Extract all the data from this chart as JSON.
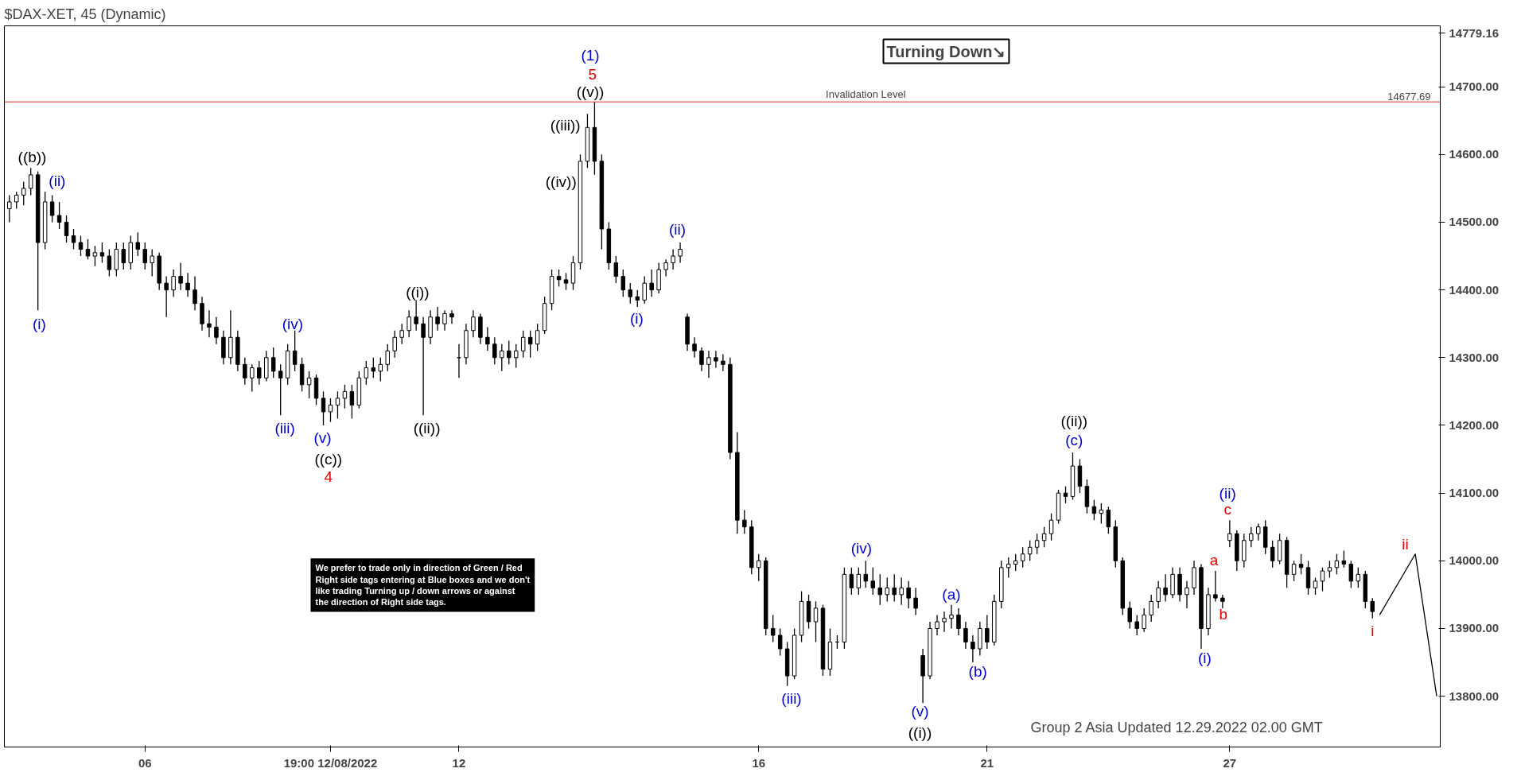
{
  "chart_data": {
    "type": "candlestick",
    "title": "$DAX-XET, 45 (Dynamic)",
    "color": "#000000",
    "categories": [
      null,
      null,
      null,
      null,
      null,
      null,
      null,
      null,
      null,
      null,
      null,
      null,
      null,
      null,
      null,
      null,
      null,
      null,
      null,
      "06",
      null,
      null,
      null,
      null,
      null,
      null,
      null,
      null,
      null,
      null,
      null,
      null,
      null,
      null,
      null,
      null,
      null,
      null,
      null,
      null,
      null,
      null,
      null,
      null,
      null,
      "19:00 12/08/2022",
      null,
      null,
      null,
      null,
      null,
      null,
      null,
      null,
      null,
      null,
      null,
      null,
      null,
      null,
      null,
      null,
      null,
      "12",
      null,
      null,
      null,
      null,
      null,
      null,
      null,
      null,
      null,
      null,
      null,
      null,
      null,
      null,
      null,
      null,
      null,
      null,
      null,
      null,
      null,
      null,
      null,
      null,
      null,
      null,
      null,
      null,
      null,
      null,
      null,
      null,
      null,
      null,
      null,
      null,
      null,
      null,
      null,
      null,
      null,
      "16",
      null,
      null,
      null,
      null,
      null,
      null,
      null,
      null,
      null,
      null,
      null,
      null,
      null,
      null,
      null,
      null,
      null,
      null,
      null,
      null,
      null,
      null,
      null,
      null,
      null,
      null,
      null,
      null,
      null,
      null,
      null,
      "21",
      null,
      null,
      null,
      null,
      null,
      null,
      null,
      null,
      null,
      null,
      null,
      null,
      null,
      null,
      null,
      null,
      null,
      null,
      null,
      null,
      null,
      null,
      null,
      null,
      null,
      null,
      null,
      null,
      null,
      null,
      null,
      null,
      null,
      "27",
      null,
      null,
      null,
      null,
      null,
      null,
      null,
      null,
      null,
      null,
      null,
      null,
      null,
      null,
      null,
      null,
      null,
      null,
      null,
      null,
      null,
      null,
      null,
      null,
      null,
      null,
      null,
      null,
      null
    ],
    "ohlc": [
      [
        14520,
        14540,
        14500,
        14530
      ],
      [
        14530,
        14545,
        14520,
        14540
      ],
      [
        14540,
        14560,
        14525,
        14550
      ],
      [
        14550,
        14580,
        14540,
        14570
      ],
      [
        14570,
        14575,
        14370,
        14470
      ],
      [
        14470,
        14545,
        14460,
        14530
      ],
      [
        14530,
        14540,
        14500,
        14510
      ],
      [
        14510,
        14530,
        14490,
        14500
      ],
      [
        14500,
        14510,
        14470,
        14480
      ],
      [
        14480,
        14490,
        14460,
        14470
      ],
      [
        14470,
        14480,
        14450,
        14460
      ],
      [
        14460,
        14475,
        14445,
        14450
      ],
      [
        14450,
        14465,
        14435,
        14455
      ],
      [
        14455,
        14470,
        14440,
        14450
      ],
      [
        14450,
        14460,
        14420,
        14430
      ],
      [
        14430,
        14470,
        14420,
        14460
      ],
      [
        14460,
        14470,
        14430,
        14440
      ],
      [
        14440,
        14480,
        14430,
        14470
      ],
      [
        14470,
        14485,
        14450,
        14460
      ],
      [
        14460,
        14470,
        14430,
        14440
      ],
      [
        14440,
        14460,
        14420,
        14450
      ],
      [
        14450,
        14455,
        14400,
        14410
      ],
      [
        14410,
        14420,
        14360,
        14400
      ],
      [
        14400,
        14430,
        14390,
        14420
      ],
      [
        14420,
        14440,
        14400,
        14410
      ],
      [
        14410,
        14425,
        14390,
        14400
      ],
      [
        14400,
        14420,
        14370,
        14380
      ],
      [
        14380,
        14390,
        14340,
        14350
      ],
      [
        14350,
        14370,
        14330,
        14345
      ],
      [
        14345,
        14360,
        14320,
        14330
      ],
      [
        14330,
        14340,
        14290,
        14300
      ],
      [
        14300,
        14370,
        14290,
        14330
      ],
      [
        14330,
        14340,
        14280,
        14290
      ],
      [
        14290,
        14300,
        14260,
        14270
      ],
      [
        14270,
        14290,
        14250,
        14285
      ],
      [
        14285,
        14295,
        14260,
        14270
      ],
      [
        14270,
        14310,
        14265,
        14300
      ],
      [
        14300,
        14315,
        14270,
        14280
      ],
      [
        14280,
        14290,
        14215,
        14270
      ],
      [
        14270,
        14320,
        14260,
        14310
      ],
      [
        14310,
        14340,
        14280,
        14290
      ],
      [
        14290,
        14300,
        14250,
        14260
      ],
      [
        14260,
        14280,
        14240,
        14270
      ],
      [
        14270,
        14275,
        14230,
        14240
      ],
      [
        14240,
        14250,
        14200,
        14220
      ],
      [
        14220,
        14240,
        14205,
        14230
      ],
      [
        14230,
        14250,
        14210,
        14240
      ],
      [
        14240,
        14260,
        14225,
        14250
      ],
      [
        14250,
        14260,
        14210,
        14230
      ],
      [
        14230,
        14280,
        14225,
        14270
      ],
      [
        14270,
        14295,
        14260,
        14285
      ],
      [
        14285,
        14300,
        14270,
        14280
      ],
      [
        14280,
        14300,
        14265,
        14290
      ],
      [
        14290,
        14320,
        14280,
        14310
      ],
      [
        14310,
        14340,
        14300,
        14330
      ],
      [
        14330,
        14350,
        14320,
        14340
      ],
      [
        14340,
        14370,
        14330,
        14360
      ],
      [
        14360,
        14385,
        14340,
        14350
      ],
      [
        14350,
        14360,
        14215,
        14330
      ],
      [
        14330,
        14370,
        14320,
        14360
      ],
      [
        14360,
        14375,
        14340,
        14350
      ],
      [
        14350,
        14370,
        14340,
        14365
      ],
      [
        14365,
        14370,
        14350,
        14360
      ],
      [
        14300,
        14320,
        14270,
        14300
      ],
      [
        14300,
        14350,
        14290,
        14340
      ],
      [
        14340,
        14370,
        14330,
        14360
      ],
      [
        14360,
        14365,
        14320,
        14330
      ],
      [
        14330,
        14345,
        14310,
        14320
      ],
      [
        14320,
        14330,
        14290,
        14300
      ],
      [
        14300,
        14320,
        14280,
        14310
      ],
      [
        14310,
        14325,
        14290,
        14300
      ],
      [
        14300,
        14320,
        14285,
        14310
      ],
      [
        14310,
        14340,
        14300,
        14330
      ],
      [
        14330,
        14340,
        14300,
        14320
      ],
      [
        14320,
        14350,
        14310,
        14340
      ],
      [
        14340,
        14390,
        14335,
        14380
      ],
      [
        14380,
        14430,
        14370,
        14420
      ],
      [
        14420,
        14430,
        14405,
        14415
      ],
      [
        14415,
        14425,
        14400,
        14410
      ],
      [
        14410,
        14450,
        14400,
        14440
      ],
      [
        14440,
        14600,
        14430,
        14590
      ],
      [
        14590,
        14660,
        14580,
        14640
      ],
      [
        14640,
        14677.69,
        14570,
        14590
      ],
      [
        14590,
        14600,
        14460,
        14490
      ],
      [
        14490,
        14500,
        14430,
        14440
      ],
      [
        14440,
        14450,
        14410,
        14420
      ],
      [
        14420,
        14430,
        14390,
        14400
      ],
      [
        14400,
        14410,
        14380,
        14390
      ],
      [
        14390,
        14400,
        14375,
        14385
      ],
      [
        14385,
        14420,
        14380,
        14410
      ],
      [
        14410,
        14430,
        14390,
        14400
      ],
      [
        14400,
        14440,
        14395,
        14430
      ],
      [
        14430,
        14445,
        14420,
        14440
      ],
      [
        14440,
        14460,
        14430,
        14450
      ],
      [
        14450,
        14470,
        14440,
        14460
      ],
      [
        14360,
        14365,
        14310,
        14320
      ],
      [
        14320,
        14330,
        14300,
        14310
      ],
      [
        14310,
        14315,
        14280,
        14290
      ],
      [
        14290,
        14310,
        14270,
        14300
      ],
      [
        14300,
        14310,
        14285,
        14295
      ],
      [
        14295,
        14305,
        14280,
        14290
      ],
      [
        14290,
        14300,
        14150,
        14160
      ],
      [
        14160,
        14190,
        14040,
        14060
      ],
      [
        14060,
        14075,
        14040,
        14050
      ],
      [
        14050,
        14060,
        13980,
        13990
      ],
      [
        13990,
        14010,
        13970,
        14000
      ],
      [
        14000,
        14005,
        13890,
        13900
      ],
      [
        13900,
        13920,
        13880,
        13890
      ],
      [
        13890,
        13900,
        13860,
        13870
      ],
      [
        13870,
        13880,
        13815,
        13830
      ],
      [
        13830,
        13900,
        13825,
        13890
      ],
      [
        13890,
        13955,
        13880,
        13940
      ],
      [
        13940,
        13950,
        13900,
        13910
      ],
      [
        13910,
        13940,
        13880,
        13930
      ],
      [
        13930,
        13935,
        13830,
        13840
      ],
      [
        13840,
        13900,
        13830,
        13880
      ],
      [
        13880,
        13890,
        13870,
        13880
      ],
      [
        13880,
        13990,
        13870,
        13980
      ],
      [
        13980,
        13990,
        13950,
        13960
      ],
      [
        13960,
        13990,
        13950,
        13980
      ],
      [
        13980,
        14000,
        13960,
        13970
      ],
      [
        13970,
        13990,
        13950,
        13960
      ],
      [
        13960,
        13980,
        13935,
        13950
      ],
      [
        13950,
        13975,
        13940,
        13960
      ],
      [
        13960,
        13980,
        13940,
        13950
      ],
      [
        13950,
        13975,
        13935,
        13960
      ],
      [
        13960,
        13970,
        13930,
        13945
      ],
      [
        13945,
        13960,
        13920,
        13930
      ],
      [
        13860,
        13870,
        13790,
        13830
      ],
      [
        13830,
        13910,
        13825,
        13900
      ],
      [
        13900,
        13920,
        13890,
        13910
      ],
      [
        13910,
        13925,
        13895,
        13915
      ],
      [
        13915,
        13935,
        13900,
        13920
      ],
      [
        13920,
        13930,
        13890,
        13900
      ],
      [
        13900,
        13910,
        13870,
        13880
      ],
      [
        13880,
        13890,
        13850,
        13870
      ],
      [
        13870,
        13910,
        13860,
        13900
      ],
      [
        13900,
        13920,
        13870,
        13880
      ],
      [
        13880,
        13950,
        13875,
        13940
      ],
      [
        13940,
        14000,
        13930,
        13990
      ],
      [
        13990,
        14005,
        13975,
        13995
      ],
      [
        13995,
        14010,
        13985,
        14000
      ],
      [
        14000,
        14020,
        13990,
        14010
      ],
      [
        14010,
        14030,
        14000,
        14020
      ],
      [
        14020,
        14040,
        14010,
        14030
      ],
      [
        14030,
        14050,
        14020,
        14040
      ],
      [
        14040,
        14070,
        14030,
        14060
      ],
      [
        14060,
        14105,
        14055,
        14100
      ],
      [
        14100,
        14110,
        14085,
        14095
      ],
      [
        14095,
        14160,
        14090,
        14140
      ],
      [
        14140,
        14150,
        14100,
        14110
      ],
      [
        14110,
        14120,
        14070,
        14080
      ],
      [
        14080,
        14090,
        14060,
        14070
      ],
      [
        14070,
        14085,
        14055,
        14075
      ],
      [
        14075,
        14080,
        14040,
        14050
      ],
      [
        14050,
        14060,
        13990,
        14000
      ],
      [
        14000,
        14005,
        13920,
        13930
      ],
      [
        13930,
        13940,
        13900,
        13910
      ],
      [
        13910,
        13920,
        13890,
        13900
      ],
      [
        13900,
        13930,
        13895,
        13920
      ],
      [
        13920,
        13950,
        13910,
        13940
      ],
      [
        13940,
        13970,
        13930,
        13960
      ],
      [
        13960,
        13980,
        13940,
        13950
      ],
      [
        13950,
        13990,
        13945,
        13980
      ],
      [
        13980,
        13990,
        13940,
        13950
      ],
      [
        13950,
        13970,
        13930,
        13960
      ],
      [
        13960,
        14000,
        13950,
        13990
      ],
      [
        13990,
        13995,
        13870,
        13900
      ],
      [
        13900,
        13960,
        13890,
        13950
      ],
      [
        13950,
        13985,
        13940,
        13945
      ],
      [
        13945,
        13950,
        13930,
        13940
      ],
      [
        14030,
        14060,
        14020,
        14040
      ],
      [
        14040,
        14045,
        13985,
        14000
      ],
      [
        14000,
        14040,
        13990,
        14030
      ],
      [
        14030,
        14050,
        14020,
        14040
      ],
      [
        14040,
        14055,
        14030,
        14050
      ],
      [
        14050,
        14060,
        14010,
        14020
      ],
      [
        14020,
        14030,
        13990,
        14000
      ],
      [
        14000,
        14040,
        13995,
        14030
      ],
      [
        14030,
        14035,
        13960,
        13980
      ],
      [
        13980,
        14000,
        13970,
        13995
      ],
      [
        13995,
        14010,
        13980,
        13990
      ],
      [
        13990,
        14000,
        13950,
        13960
      ],
      [
        13960,
        13975,
        13950,
        13970
      ],
      [
        13970,
        13990,
        13955,
        13985
      ],
      [
        13985,
        14000,
        13975,
        13990
      ],
      [
        13990,
        14010,
        13980,
        14000
      ],
      [
        14000,
        14015,
        13990,
        13995
      ],
      [
        13995,
        14000,
        13960,
        13970
      ],
      [
        13970,
        13990,
        13960,
        13980
      ],
      [
        13980,
        13985,
        13930,
        13940
      ],
      [
        13940,
        13945,
        13915,
        13925
      ],
      null,
      null,
      null,
      null,
      null,
      null,
      null,
      null,
      null
    ],
    "series": [
      {
        "type": "line",
        "color": "#000000",
        "values": [
          null,
          null,
          null,
          null,
          null,
          null,
          null,
          null,
          null,
          null,
          null,
          null,
          null,
          null,
          null,
          null,
          null,
          null,
          null,
          null,
          null,
          null,
          null,
          null,
          null,
          null,
          null,
          null,
          null,
          null,
          null,
          null,
          null,
          null,
          null,
          null,
          null,
          null,
          null,
          null,
          null,
          null,
          null,
          null,
          null,
          null,
          null,
          null,
          null,
          null,
          null,
          null,
          null,
          null,
          null,
          null,
          null,
          null,
          null,
          null,
          null,
          null,
          null,
          null,
          null,
          null,
          null,
          null,
          null,
          null,
          null,
          null,
          null,
          null,
          null,
          null,
          null,
          null,
          null,
          null,
          null,
          null,
          null,
          null,
          null,
          null,
          null,
          null,
          null,
          null,
          null,
          null,
          null,
          null,
          null,
          null,
          null,
          null,
          null,
          null,
          null,
          null,
          null,
          null,
          null,
          null,
          null,
          null,
          null,
          null,
          null,
          null,
          null,
          null,
          null,
          null,
          null,
          null,
          null,
          null,
          null,
          null,
          null,
          null,
          null,
          null,
          null,
          null,
          null,
          null,
          null,
          null,
          null,
          null,
          null,
          null,
          null,
          null,
          null,
          null,
          null,
          null,
          null,
          null,
          null,
          null,
          null,
          null,
          null,
          null,
          null,
          null,
          null,
          null,
          null,
          null,
          null,
          null,
          null,
          null,
          null,
          null,
          null,
          null,
          null,
          null,
          null,
          null,
          null,
          null,
          null,
          null,
          null,
          null,
          null,
          null,
          null,
          null,
          null,
          null,
          null,
          null,
          null,
          null,
          null,
          null,
          null,
          null,
          null,
          null,
          null,
          null,
          13920,
          null,
          null,
          null,
          null,
          14010,
          null,
          null,
          13800
        ]
      }
    ],
    "ylim": [
      13725,
      14790
    ],
    "yticks": [
      {
        "value": 13800,
        "label": "13800.00"
      },
      {
        "value": 13900,
        "label": "13900.00"
      },
      {
        "value": 14000,
        "label": "14000.00"
      },
      {
        "value": 14100,
        "label": "14100.00"
      },
      {
        "value": 14200,
        "label": "14200.00"
      },
      {
        "value": 14300,
        "label": "14300.00"
      },
      {
        "value": 14400,
        "label": "14400.00"
      },
      {
        "value": 14500,
        "label": "14500.00"
      },
      {
        "value": 14600,
        "label": "14600.00"
      },
      {
        "value": 14700,
        "label": "14700.00"
      },
      {
        "value": 14779.16,
        "label": "14779.16"
      }
    ],
    "ref_lines": [
      {
        "axis": "y",
        "value": 14677.69,
        "label": "Invalidation Level",
        "color": "#e03030"
      }
    ],
    "grid": false,
    "annotations": [
      "((b))",
      "(ii)",
      "(i)",
      "(iii)",
      "(iv)",
      "(v)",
      "((c))",
      "4",
      "((i))",
      "((ii))",
      "(1)",
      "5",
      "((v))",
      "((iii))",
      "((iv))",
      "(i)",
      "(ii)",
      "(iii)",
      "(iv)",
      "(v)",
      "((i))",
      "(a)",
      "(b)",
      "((ii))",
      "(c)",
      "(ii)",
      "c",
      "a",
      "b",
      "(i)",
      "i",
      "ii",
      "14677.69",
      "Turning Down↘",
      "We prefer to trade only in direction of Green / Red\nRight side tags entering at Blue boxes and we don't\nlike trading Turning up / down arrows or against\nthe direction of Right side tags.",
      "Group 2 Asia Updated 12.29.2022 02.00 GMT"
    ]
  }
}
